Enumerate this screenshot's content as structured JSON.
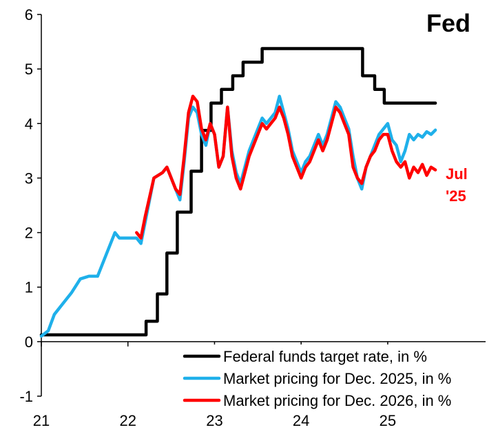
{
  "chart_data": {
    "type": "line",
    "title": "Fed",
    "xlabel": "",
    "ylabel": "",
    "xlim": [
      21.0,
      26.17
    ],
    "ylim": [
      -1,
      6
    ],
    "y_ticks": [
      -1,
      0,
      1,
      2,
      3,
      4,
      5,
      6
    ],
    "x_ticks": [
      {
        "value": 21,
        "label": "21"
      },
      {
        "value": 22,
        "label": "22"
      },
      {
        "value": 23,
        "label": "23"
      },
      {
        "value": 24,
        "label": "24"
      },
      {
        "value": 25,
        "label": "25"
      }
    ],
    "annotation": {
      "lines": [
        "Jul",
        "'25"
      ],
      "color": "#ff0000"
    },
    "legend_position": "bottom-right",
    "series": [
      {
        "name": "Federal funds target rate, in %",
        "color": "#000000",
        "step": true,
        "points": [
          [
            21.0,
            0.125
          ],
          [
            22.21,
            0.375
          ],
          [
            22.34,
            0.875
          ],
          [
            22.45,
            1.625
          ],
          [
            22.57,
            2.375
          ],
          [
            22.73,
            3.125
          ],
          [
            22.85,
            3.875
          ],
          [
            22.96,
            4.375
          ],
          [
            23.08,
            4.625
          ],
          [
            23.21,
            4.875
          ],
          [
            23.33,
            5.125
          ],
          [
            23.55,
            5.375
          ],
          [
            24.71,
            4.875
          ],
          [
            24.85,
            4.625
          ],
          [
            24.96,
            4.375
          ],
          [
            25.55,
            4.375
          ]
        ]
      },
      {
        "name": "Market pricing for Dec. 2025, in %",
        "color": "#1fb0ea",
        "step": false,
        "points": [
          [
            21.0,
            0.1
          ],
          [
            21.08,
            0.2
          ],
          [
            21.15,
            0.5
          ],
          [
            21.25,
            0.7
          ],
          [
            21.35,
            0.9
          ],
          [
            21.45,
            1.15
          ],
          [
            21.55,
            1.2
          ],
          [
            21.65,
            1.2
          ],
          [
            21.75,
            1.6
          ],
          [
            21.85,
            2.0
          ],
          [
            21.9,
            1.9
          ],
          [
            22.0,
            1.9
          ],
          [
            22.1,
            1.9
          ],
          [
            22.15,
            1.8
          ],
          [
            22.2,
            2.2
          ],
          [
            22.3,
            3.0
          ],
          [
            22.4,
            3.1
          ],
          [
            22.45,
            3.2
          ],
          [
            22.5,
            3.0
          ],
          [
            22.55,
            2.8
          ],
          [
            22.6,
            2.6
          ],
          [
            22.65,
            3.3
          ],
          [
            22.7,
            4.1
          ],
          [
            22.75,
            4.3
          ],
          [
            22.8,
            4.2
          ],
          [
            22.85,
            3.8
          ],
          [
            22.9,
            3.6
          ],
          [
            22.95,
            4.0
          ],
          [
            23.0,
            3.8
          ],
          [
            23.05,
            3.2
          ],
          [
            23.1,
            3.4
          ],
          [
            23.15,
            4.3
          ],
          [
            23.2,
            3.5
          ],
          [
            23.25,
            3.1
          ],
          [
            23.3,
            2.9
          ],
          [
            23.35,
            3.2
          ],
          [
            23.4,
            3.5
          ],
          [
            23.45,
            3.7
          ],
          [
            23.5,
            3.9
          ],
          [
            23.55,
            4.1
          ],
          [
            23.6,
            4.0
          ],
          [
            23.7,
            4.2
          ],
          [
            23.75,
            4.5
          ],
          [
            23.8,
            4.2
          ],
          [
            23.85,
            3.9
          ],
          [
            23.9,
            3.5
          ],
          [
            24.0,
            3.1
          ],
          [
            24.05,
            3.3
          ],
          [
            24.1,
            3.4
          ],
          [
            24.15,
            3.6
          ],
          [
            24.2,
            3.8
          ],
          [
            24.25,
            3.6
          ],
          [
            24.3,
            3.8
          ],
          [
            24.35,
            4.1
          ],
          [
            24.4,
            4.4
          ],
          [
            24.45,
            4.3
          ],
          [
            24.5,
            4.1
          ],
          [
            24.55,
            3.9
          ],
          [
            24.6,
            3.4
          ],
          [
            24.65,
            3.0
          ],
          [
            24.7,
            2.8
          ],
          [
            24.75,
            3.2
          ],
          [
            24.8,
            3.4
          ],
          [
            24.85,
            3.6
          ],
          [
            24.9,
            3.8
          ],
          [
            24.95,
            3.9
          ],
          [
            25.0,
            4.0
          ],
          [
            25.05,
            3.7
          ],
          [
            25.1,
            3.6
          ],
          [
            25.15,
            3.3
          ],
          [
            25.2,
            3.5
          ],
          [
            25.25,
            3.8
          ],
          [
            25.3,
            3.7
          ],
          [
            25.35,
            3.8
          ],
          [
            25.4,
            3.75
          ],
          [
            25.45,
            3.85
          ],
          [
            25.5,
            3.8
          ],
          [
            25.55,
            3.88
          ]
        ]
      },
      {
        "name": "Market pricing for Dec. 2026, in %",
        "color": "#ff0000",
        "step": false,
        "points": [
          [
            22.1,
            2.0
          ],
          [
            22.15,
            1.9
          ],
          [
            22.2,
            2.3
          ],
          [
            22.3,
            3.0
          ],
          [
            22.4,
            3.1
          ],
          [
            22.45,
            3.2
          ],
          [
            22.5,
            3.0
          ],
          [
            22.55,
            2.8
          ],
          [
            22.6,
            2.7
          ],
          [
            22.65,
            3.4
          ],
          [
            22.7,
            4.2
          ],
          [
            22.75,
            4.5
          ],
          [
            22.8,
            4.4
          ],
          [
            22.85,
            3.9
          ],
          [
            22.9,
            3.7
          ],
          [
            22.95,
            4.0
          ],
          [
            23.0,
            3.8
          ],
          [
            23.05,
            3.2
          ],
          [
            23.1,
            3.4
          ],
          [
            23.15,
            4.3
          ],
          [
            23.2,
            3.4
          ],
          [
            23.25,
            3.0
          ],
          [
            23.3,
            2.8
          ],
          [
            23.35,
            3.1
          ],
          [
            23.4,
            3.4
          ],
          [
            23.45,
            3.6
          ],
          [
            23.5,
            3.8
          ],
          [
            23.55,
            4.0
          ],
          [
            23.6,
            3.9
          ],
          [
            23.7,
            4.1
          ],
          [
            23.75,
            4.3
          ],
          [
            23.8,
            4.1
          ],
          [
            23.85,
            3.8
          ],
          [
            23.9,
            3.4
          ],
          [
            24.0,
            3.0
          ],
          [
            24.05,
            3.2
          ],
          [
            24.1,
            3.3
          ],
          [
            24.15,
            3.5
          ],
          [
            24.2,
            3.7
          ],
          [
            24.25,
            3.5
          ],
          [
            24.3,
            3.7
          ],
          [
            24.35,
            4.0
          ],
          [
            24.4,
            4.3
          ],
          [
            24.45,
            4.2
          ],
          [
            24.5,
            4.0
          ],
          [
            24.55,
            3.8
          ],
          [
            24.6,
            3.2
          ],
          [
            24.65,
            3.0
          ],
          [
            24.7,
            2.9
          ],
          [
            24.75,
            3.2
          ],
          [
            24.8,
            3.4
          ],
          [
            24.85,
            3.5
          ],
          [
            24.9,
            3.7
          ],
          [
            24.95,
            3.8
          ],
          [
            25.0,
            3.8
          ],
          [
            25.05,
            3.5
          ],
          [
            25.1,
            3.3
          ],
          [
            25.15,
            3.2
          ],
          [
            25.2,
            3.3
          ],
          [
            25.25,
            3.0
          ],
          [
            25.3,
            3.2
          ],
          [
            25.35,
            3.1
          ],
          [
            25.4,
            3.25
          ],
          [
            25.45,
            3.05
          ],
          [
            25.5,
            3.2
          ],
          [
            25.55,
            3.15
          ]
        ]
      }
    ]
  }
}
